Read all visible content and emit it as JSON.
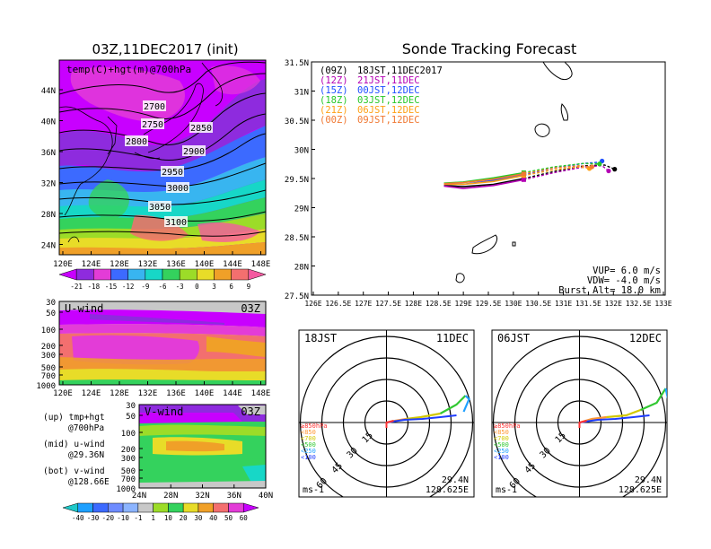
{
  "left_panel": {
    "title": "03Z,11DEC2017 (init)",
    "map_label": "temp(C)+hgt(m)@700hPa",
    "lat_ticks": [
      "44N",
      "40N",
      "36N",
      "32N",
      "28N",
      "24N"
    ],
    "lon_ticks": [
      "120E",
      "124E",
      "128E",
      "132E",
      "136E",
      "140E",
      "144E",
      "148E"
    ],
    "contour_labels": [
      "2700",
      "2750",
      "2800",
      "2850",
      "2900",
      "2950",
      "3000",
      "3050",
      "3100"
    ],
    "colorbar_temp": [
      "-21",
      "-18",
      "-15",
      "-12",
      "-9",
      "-6",
      "-3",
      "0",
      "3",
      "6",
      "9"
    ],
    "colors": {
      "violet": "#c800ff",
      "purple": "#8e2bde",
      "blue": "#3c6aff",
      "sky": "#38b5f0",
      "cyan": "#17d7c7",
      "green": "#34d25d",
      "lime": "#9cdc28",
      "yellow": "#e8dc28",
      "orange": "#f0a028",
      "salmon": "#f36f6f",
      "pink": "#f45aa0",
      "magenta": "#e33cd7"
    }
  },
  "uwind_panel": {
    "label": "U-wind",
    "time": "03Z",
    "p_ticks": [
      "30",
      "50",
      "100",
      "200",
      "300",
      "500",
      "700",
      "1000"
    ],
    "lon_ticks": [
      "120E",
      "124E",
      "128E",
      "132E",
      "136E",
      "140E",
      "144E",
      "148E"
    ]
  },
  "vwind_panel": {
    "label": "V-wind",
    "time": "03Z",
    "p_ticks": [
      "30",
      "50",
      "100",
      "200",
      "300",
      "500",
      "700",
      "1000"
    ],
    "lat_ticks": [
      "24N",
      "28N",
      "32N",
      "36N",
      "40N"
    ],
    "colorbar_wind": [
      "-40",
      "-30",
      "-20",
      "-10",
      "-1",
      "1",
      "10",
      "20",
      "30",
      "40",
      "50",
      "60"
    ]
  },
  "legend_notes": [
    {
      "line1": "(up) tmp+hgt",
      "line2": "@700hPa"
    },
    {
      "line1": "(mid) u-wind",
      "line2": "@29.36N"
    },
    {
      "line1": "(bot) v-wind",
      "line2": "@128.66E"
    }
  ],
  "tracking": {
    "title": "Sonde Tracking Forecast",
    "legend": [
      {
        "code": "(09Z)",
        "time": "18JST,11DEC2017",
        "color": "#000000"
      },
      {
        "code": "(12Z)",
        "time": "21JST,11DEC",
        "color": "#b400b4"
      },
      {
        "code": "(15Z)",
        "time": "00JST,12DEC",
        "color": "#1e50ff"
      },
      {
        "code": "(18Z)",
        "time": "03JST,12DEC",
        "color": "#28c828"
      },
      {
        "code": "(21Z)",
        "time": "06JST,12DEC",
        "color": "#ffa014"
      },
      {
        "code": "(00Z)",
        "time": "09JST,12DEC",
        "color": "#f07832"
      }
    ],
    "params": [
      "VUP= 6.0 m/s",
      "VDW= -4.0 m/s",
      "Burst Alt= 18.0 km"
    ],
    "lat_ticks": [
      "31.5N",
      "31N",
      "30.5N",
      "30N",
      "29.5N",
      "29N",
      "28.5N",
      "28N",
      "27.5N"
    ],
    "lon_ticks": [
      "126E",
      "126.5E",
      "127E",
      "127.5E",
      "128E",
      "128.5E",
      "129E",
      "129.5E",
      "130E",
      "130.5E",
      "131E",
      "131.5E",
      "132E",
      "132.5E",
      "133E"
    ]
  },
  "hodographs": [
    {
      "time": "18JST",
      "date": "11DEC",
      "lat": "29.4N",
      "lon": "128.625E",
      "unit": "ms-1",
      "rings": [
        "15",
        "30",
        "45",
        "60"
      ],
      "legend": [
        "≥850hPa",
        "<850",
        "<700",
        "<500",
        "<250",
        "<100"
      ]
    },
    {
      "time": "06JST",
      "date": "12DEC",
      "lat": "29.4N",
      "lon": "128.625E",
      "unit": "ms-1",
      "rings": [
        "15",
        "30",
        "45",
        "60"
      ],
      "legend": [
        "≥850hPa",
        "<850",
        "<700",
        "<500",
        "<250",
        "<100"
      ]
    }
  ],
  "hodo_colors": [
    "#ff3232",
    "#ff9632",
    "#d2c800",
    "#32c832",
    "#1ea0ff",
    "#1e3cff"
  ],
  "chart_data": {
    "type": "line",
    "title": "Sonde Tracking Forecast",
    "xlabel": "",
    "ylabel": "",
    "xlim": [
      126,
      133
    ],
    "ylim": [
      27.5,
      31.5
    ],
    "series": [
      {
        "name": "(09Z) 18JST,11DEC2017",
        "x": [
          128.62,
          129.0,
          129.6,
          130.2,
          130.8,
          131.4,
          131.8,
          132.0
        ],
        "y": [
          29.38,
          29.36,
          29.4,
          29.5,
          29.62,
          29.72,
          29.73,
          29.66
        ]
      },
      {
        "name": "(12Z) 21JST,11DEC",
        "x": [
          128.62,
          129.0,
          129.6,
          130.2,
          130.8,
          131.4,
          131.75,
          131.88
        ],
        "y": [
          29.37,
          29.33,
          29.38,
          29.48,
          29.6,
          29.7,
          29.72,
          29.63
        ]
      },
      {
        "name": "(15Z) 00JST,12DEC",
        "x": [
          128.62,
          129.0,
          129.6,
          130.2,
          130.8,
          131.4,
          131.7,
          131.75
        ],
        "y": [
          29.4,
          29.4,
          29.47,
          29.56,
          29.68,
          29.76,
          29.78,
          29.8
        ]
      },
      {
        "name": "(18Z) 03JST,12DEC",
        "x": [
          128.62,
          129.0,
          129.6,
          130.2,
          130.8,
          131.4,
          131.7
        ],
        "y": [
          29.42,
          29.44,
          29.51,
          29.6,
          29.7,
          29.76,
          29.75
        ]
      },
      {
        "name": "(21Z) 06JST,12DEC",
        "x": [
          128.62,
          129.0,
          129.6,
          130.2,
          130.8,
          131.3,
          131.5
        ],
        "y": [
          29.4,
          29.4,
          29.45,
          29.55,
          29.65,
          29.7,
          29.67
        ]
      },
      {
        "name": "(00Z) 09JST,12DEC",
        "x": [
          128.62,
          129.0,
          129.6,
          130.2,
          130.8,
          131.3,
          131.55
        ],
        "y": [
          29.41,
          29.43,
          29.49,
          29.58,
          29.68,
          29.72,
          29.7
        ]
      }
    ]
  }
}
